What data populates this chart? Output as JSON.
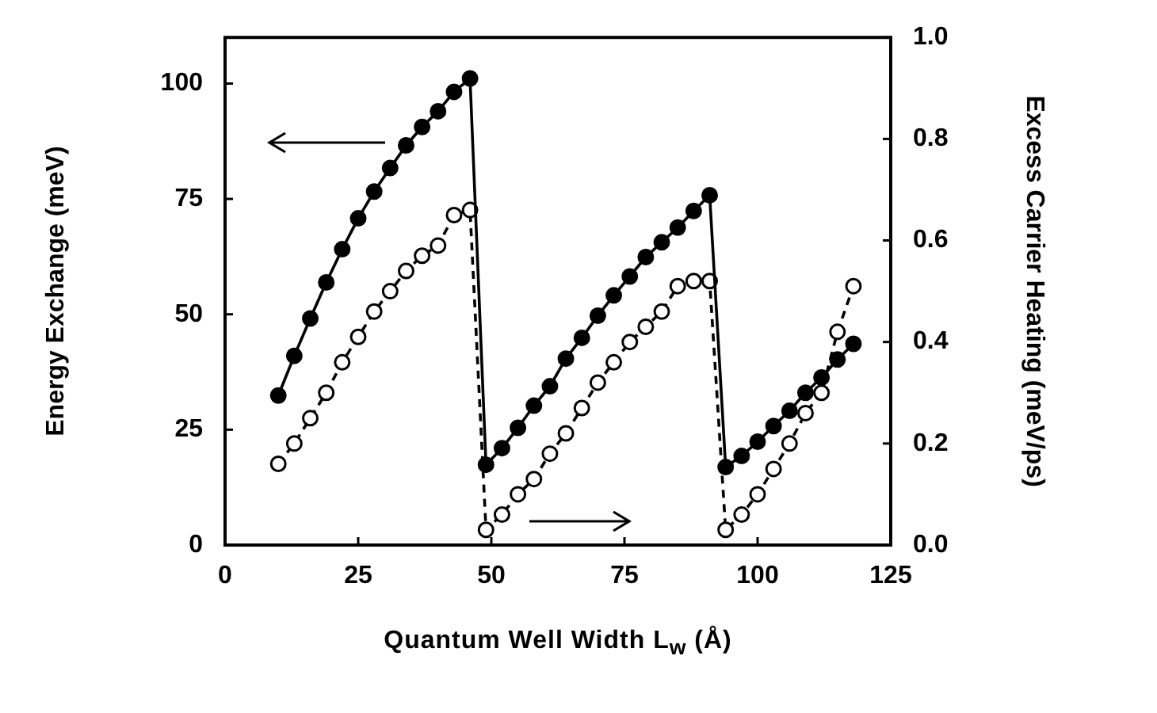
{
  "chart_data": {
    "type": "line",
    "xlabel": "Quantum Well Width L$_{w}$ (Å)",
    "ylabel": "Energy Exchange (meV)",
    "y2label": "Excess Carrier Heating (meV/ps)",
    "xlim": [
      0,
      125
    ],
    "xticks": [
      0,
      25,
      50,
      75,
      100,
      125
    ],
    "ylim": [
      0,
      110
    ],
    "yticks": [
      0,
      25,
      50,
      75,
      100
    ],
    "y2lim": [
      0,
      1.0
    ],
    "y2ticks": [
      {
        "value": 0,
        "label": "0.0"
      },
      {
        "value": 0.2,
        "label": "0.2"
      },
      {
        "value": 0.4,
        "label": "0.4"
      },
      {
        "value": 0.6,
        "label": "0.6"
      },
      {
        "value": 0.8,
        "label": "0.8"
      },
      {
        "value": 1.0,
        "label": "1.0"
      }
    ],
    "grid": false,
    "legend": false,
    "marker": "circle",
    "series": [
      {
        "color": "#000000",
        "line_style": "solid",
        "x": [
          10,
          13,
          16,
          19,
          22,
          25,
          28,
          31,
          34,
          37,
          40,
          43,
          46,
          49,
          52,
          55,
          58,
          61,
          64,
          67,
          70,
          73,
          76,
          79,
          82,
          85,
          88,
          91,
          94,
          97,
          100,
          103,
          106,
          109,
          112,
          115,
          118
        ],
        "values": [
          32.4,
          41,
          49.1,
          56.9,
          64.1,
          70.8,
          76.6,
          81.7,
          86.6,
          90.6,
          94,
          98.2,
          101.1,
          17.4,
          21,
          25.4,
          30.2,
          34.4,
          40.4,
          44.9,
          49.7,
          54.1,
          58.2,
          62.4,
          65.6,
          68.8,
          72.4,
          75.8,
          16.9,
          19.3,
          22.4,
          25.8,
          29.1,
          33,
          36.3,
          40.2,
          43.6
        ]
      },
      {
        "color": "#000000",
        "line_style": "dashed",
        "axis": "y2",
        "x": [
          10,
          13,
          16,
          19,
          22,
          25,
          28,
          31,
          34,
          37,
          40,
          43,
          46,
          49,
          52,
          55,
          58,
          61,
          64,
          67,
          70,
          73,
          76,
          79,
          82,
          85,
          88,
          91,
          94,
          97,
          100,
          103,
          106,
          109,
          112,
          115,
          118
        ],
        "values": [
          0.16,
          0.2,
          0.25,
          0.3,
          0.36,
          0.41,
          0.46,
          0.5,
          0.54,
          0.57,
          0.59,
          0.65,
          0.66,
          0.03,
          0.06,
          0.1,
          0.13,
          0.18,
          0.22,
          0.27,
          0.32,
          0.36,
          0.4,
          0.43,
          0.46,
          0.51,
          0.52,
          0.52,
          0.03,
          0.06,
          0.1,
          0.15,
          0.2,
          0.26,
          0.3,
          0.42,
          0.51
        ]
      }
    ]
  }
}
